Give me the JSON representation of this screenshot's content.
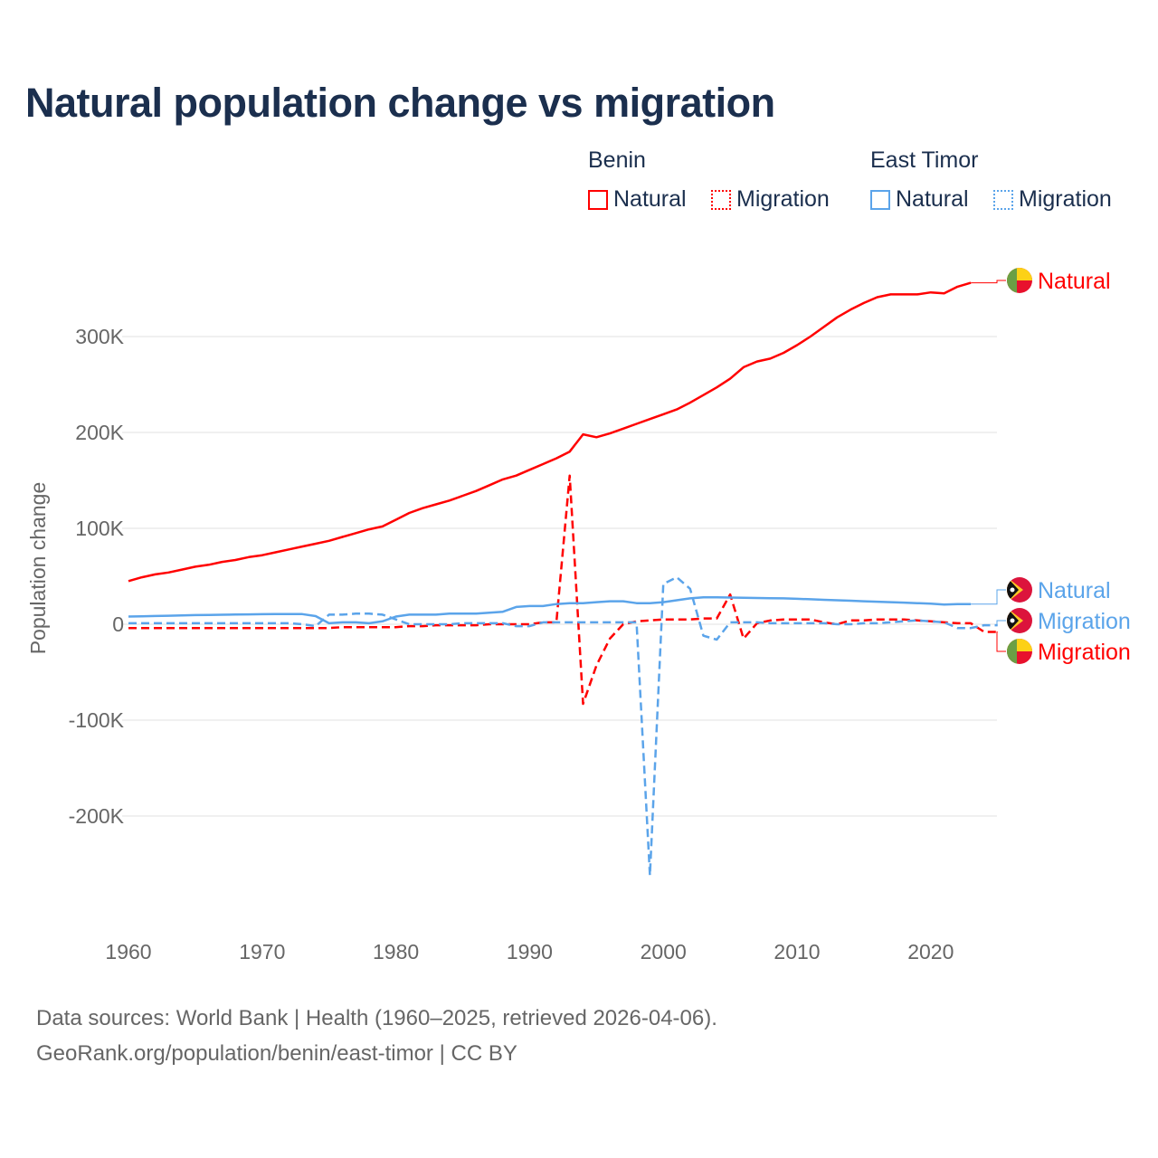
{
  "title": "Natural population change vs migration",
  "legend": {
    "groups": [
      {
        "name": "Benin",
        "color": "#ff0000",
        "items": [
          "Natural",
          "Migration"
        ]
      },
      {
        "name": "East Timor",
        "color": "#5ba4ea",
        "items": [
          "Natural",
          "Migration"
        ]
      }
    ]
  },
  "footer": {
    "line1": "Data sources: World Bank | Health (1960–2025, retrieved 2026-04-06).",
    "line2": "GeoRank.org/population/benin/east-timor | CC BY"
  },
  "chart_data": {
    "type": "line",
    "title": "Natural population change vs migration",
    "xlabel": "",
    "ylabel": "Population change",
    "xlim": [
      1960,
      2025
    ],
    "ylim": [
      -300000,
      360000
    ],
    "x_ticks": [
      1960,
      1970,
      1980,
      1990,
      2000,
      2010,
      2020
    ],
    "x_tick_labels": [
      "1960",
      "1970",
      "1980",
      "1990",
      "2000",
      "2010",
      "2020"
    ],
    "y_ticks": [
      300000,
      200000,
      100000,
      0,
      -100000,
      -200000
    ],
    "y_tick_labels": [
      "300K",
      "200K",
      "100K",
      "0",
      "-100K",
      "-200K"
    ],
    "grid": true,
    "legend_position": "top-right",
    "units": "thousands in values arrays",
    "series": [
      {
        "name": "Benin Natural",
        "label": "Natural",
        "color": "#ff0000",
        "dash": "solid",
        "start": 1960,
        "values": [
          45,
          49,
          52,
          54,
          57,
          60,
          62,
          65,
          67,
          70,
          72,
          75,
          78,
          81,
          84,
          87,
          91,
          95,
          99,
          102,
          109,
          116,
          121,
          125,
          129,
          134,
          139,
          145,
          151,
          155,
          161,
          167,
          173,
          180,
          198,
          195,
          199,
          204,
          209,
          214,
          219,
          224,
          231,
          239,
          247,
          256,
          268,
          274,
          277,
          283,
          291,
          300,
          310,
          320,
          328,
          335,
          341,
          344,
          344,
          344,
          346,
          345,
          352,
          356
        ]
      },
      {
        "name": "Benin Migration",
        "label": "Migration",
        "color": "#ff0000",
        "dash": "dashed",
        "start": 1960,
        "values": [
          -4,
          -4,
          -4,
          -4,
          -4,
          -4,
          -4,
          -4,
          -4,
          -4,
          -4,
          -4,
          -4,
          -4,
          -4,
          -4,
          -3,
          -3,
          -3,
          -3,
          -3,
          -2,
          -2,
          -1,
          -1,
          -1,
          -1,
          0,
          0,
          0,
          0,
          2,
          2,
          155,
          -83,
          -43,
          -15,
          0,
          3,
          4,
          5,
          5,
          5,
          6,
          6,
          31,
          -15,
          1,
          4,
          5,
          5,
          5,
          2,
          0,
          4,
          4,
          5,
          5,
          5,
          4,
          3,
          2,
          1,
          1,
          -8,
          -8
        ]
      },
      {
        "name": "East Timor Natural",
        "label": "Natural",
        "color": "#5ba4ea",
        "dash": "solid",
        "start": 1960,
        "values": [
          8,
          8.3,
          8.6,
          8.9,
          9.2,
          9.5,
          9.7,
          9.9,
          10.1,
          10.3,
          10.5,
          10.6,
          10.6,
          10.6,
          8.5,
          1,
          2,
          2,
          1,
          3,
          8,
          10,
          10,
          10,
          11,
          11,
          11,
          12,
          13,
          18,
          19,
          19,
          21,
          22,
          22,
          23,
          24,
          24,
          22,
          22,
          23,
          25,
          27,
          28,
          28,
          27.8,
          27.6,
          27.4,
          27.2,
          27,
          26.5,
          26,
          25.5,
          25,
          24.5,
          24,
          23.5,
          23,
          22.5,
          22,
          21.5,
          20.5,
          21,
          21
        ]
      },
      {
        "name": "East Timor Migration",
        "label": "Migration",
        "color": "#5ba4ea",
        "dash": "dashed",
        "start": 1960,
        "values": [
          1,
          1,
          1,
          1,
          1,
          1,
          1,
          1,
          1,
          1,
          1,
          1,
          1,
          0,
          -2,
          10,
          10,
          11,
          11,
          10,
          5,
          0,
          0,
          0,
          0,
          1,
          1,
          1,
          1,
          -2,
          -2,
          2,
          2,
          2,
          2,
          2,
          2,
          2,
          2,
          -262,
          42,
          49,
          37,
          -12,
          -16,
          2,
          2,
          2,
          1,
          1,
          1,
          1,
          1,
          0,
          0,
          1,
          1,
          2,
          3,
          4,
          3,
          2,
          -4,
          -4,
          -1,
          -1
        ]
      }
    ]
  }
}
